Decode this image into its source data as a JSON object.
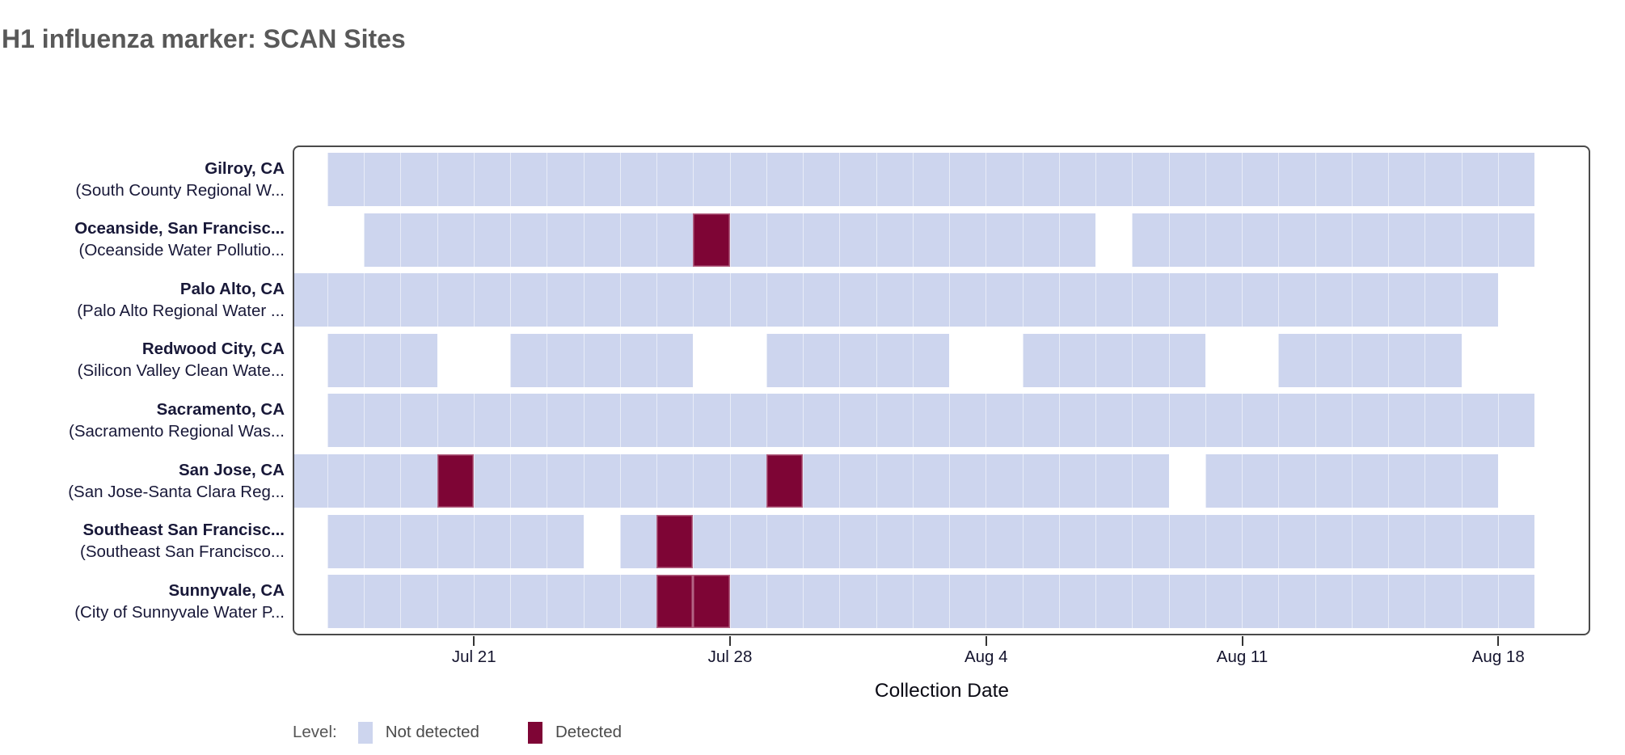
{
  "title": "H1 influenza marker: SCAN Sites",
  "colors": {
    "background": "#ffffff",
    "not_detected": "#cdd5ee",
    "detected": "#7e0535",
    "panel_border": "#4a4a4a",
    "title_text": "#595959",
    "site_label_text": "#181838",
    "tick_text": "#14142e",
    "axis_title_text": "#0a0a14",
    "legend_text": "#4b4b4b"
  },
  "legend": {
    "label": "Level:",
    "items": [
      {
        "name": "not-detected",
        "label": "Not detected",
        "color_key": "not_detected"
      },
      {
        "name": "detected",
        "label": "Detected",
        "color_key": "detected"
      }
    ]
  },
  "chart_data": {
    "type": "heatmap",
    "title": "H1 influenza marker: SCAN Sites",
    "xlabel": "Collection Date",
    "ylabel": "",
    "x_unit": "day",
    "day0_date": "Jul 16",
    "x_ticks": [
      {
        "label": "Jul 21",
        "day": 5
      },
      {
        "label": "Jul 28",
        "day": 12
      },
      {
        "label": "Aug 4",
        "day": 19
      },
      {
        "label": "Aug 11",
        "day": 26
      },
      {
        "label": "Aug 18",
        "day": 33
      }
    ],
    "levels": [
      "Not detected",
      "Detected"
    ],
    "sites": [
      {
        "city": "Gilroy, CA",
        "facility": "(South County Regional W...",
        "segments": [
          {
            "from": "Jul 17",
            "to": "Aug 18",
            "start_day": 1,
            "end_day": 34
          }
        ],
        "detected": []
      },
      {
        "city": "Oceanside, San Francisc...",
        "facility": "(Oceanside Water Pollutio...",
        "segments": [
          {
            "from": "Jul 18",
            "to": "Aug 6",
            "start_day": 2,
            "end_day": 22
          },
          {
            "from": "Aug 8",
            "to": "Aug 18",
            "start_day": 23,
            "end_day": 34
          }
        ],
        "detected": [
          {
            "date": "Jul 27",
            "day": 11
          }
        ]
      },
      {
        "city": "Palo Alto, CA",
        "facility": "(Palo Alto Regional Water ...",
        "segments": [
          {
            "from": "Jul 16",
            "to": "Aug 17",
            "start_day": 0,
            "end_day": 33
          }
        ],
        "detected": []
      },
      {
        "city": "Redwood City, CA",
        "facility": "(Silicon Valley Clean Wate...",
        "segments": [
          {
            "from": "Jul 17",
            "to": "Jul 19",
            "start_day": 1,
            "end_day": 4
          },
          {
            "from": "Jul 22",
            "to": "Jul 26",
            "start_day": 6,
            "end_day": 11
          },
          {
            "from": "Jul 29",
            "to": "Aug 2",
            "start_day": 13,
            "end_day": 18
          },
          {
            "from": "Aug 5",
            "to": "Aug 9",
            "start_day": 20,
            "end_day": 25
          },
          {
            "from": "Aug 12",
            "to": "Aug 16",
            "start_day": 27,
            "end_day": 32
          }
        ],
        "detected": []
      },
      {
        "city": "Sacramento, CA",
        "facility": "(Sacramento Regional Was...",
        "segments": [
          {
            "from": "Jul 17",
            "to": "Aug 18",
            "start_day": 1,
            "end_day": 34
          }
        ],
        "detected": []
      },
      {
        "city": "San Jose, CA",
        "facility": "(San Jose-Santa Clara Reg...",
        "segments": [
          {
            "from": "Jul 16",
            "to": "Aug 8",
            "start_day": 0,
            "end_day": 24
          },
          {
            "from": "Aug 10",
            "to": "Aug 17",
            "start_day": 25,
            "end_day": 33
          }
        ],
        "detected": [
          {
            "date": "Jul 20",
            "day": 4
          },
          {
            "date": "Jul 29",
            "day": 13
          }
        ]
      },
      {
        "city": "Southeast San Francisc...",
        "facility": "(Southeast San Francisco...",
        "segments": [
          {
            "from": "Jul 17",
            "to": "Jul 23",
            "start_day": 1,
            "end_day": 8
          },
          {
            "from": "Jul 25",
            "to": "Aug 18",
            "start_day": 9,
            "end_day": 34
          }
        ],
        "detected": [
          {
            "date": "Jul 26",
            "day": 10
          }
        ]
      },
      {
        "city": "Sunnyvale, CA",
        "facility": "(City of Sunnyvale Water P...",
        "segments": [
          {
            "from": "Jul 17",
            "to": "Aug 18",
            "start_day": 1,
            "end_day": 34
          }
        ],
        "detected": [
          {
            "date": "Jul 26",
            "day": 10
          },
          {
            "date": "Jul 27",
            "day": 11
          }
        ]
      }
    ]
  }
}
